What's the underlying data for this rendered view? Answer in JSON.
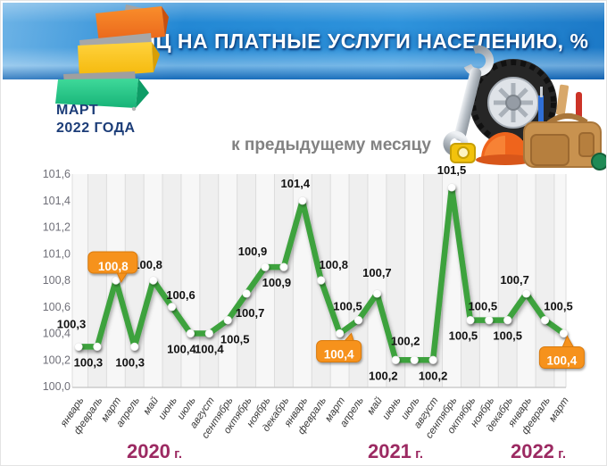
{
  "header": {
    "title": "ИПЦ НА ПЛАТНЫЕ УСЛУГИ НАСЕЛЕНИЮ, %",
    "period_line1": "МАРТ",
    "period_line2": "2022 ГОДА"
  },
  "colors": {
    "line_green": "#3da23d",
    "marker_white": "#ffffff",
    "highlight_orange": "#f6921e",
    "highlight_orange_dark": "#d87a10",
    "year_label_magenta": "#9c2a62",
    "axis_gray": "#6f6f78",
    "tick_gray": "#3a3a3a",
    "data_label_black": "#111111",
    "banner_blue": "#2388d4",
    "period_navy": "#1c3d78",
    "subtitle_gray": "#828282"
  },
  "icons": {
    "logo": "steps-logo-icon",
    "decor": [
      "wrench-icon",
      "tire-icon",
      "helmet-icon",
      "toolbag-icon",
      "tape-measure-icon"
    ]
  },
  "chart_data": {
    "type": "line",
    "title": "к предыдущему месяцу",
    "ylabel": "",
    "xlabel": "",
    "ylim": [
      100.0,
      101.6
    ],
    "y_ticks": [
      "101,6",
      "101,4",
      "101,2",
      "101,0",
      "100,8",
      "100,6",
      "100,4",
      "100,2",
      "100,0"
    ],
    "grid": "vertical-only",
    "legend_position": "none",
    "years": [
      {
        "label": "2020",
        "suffix": "г."
      },
      {
        "label": "2021",
        "suffix": "г."
      },
      {
        "label": "2022",
        "suffix": "г."
      }
    ],
    "points": [
      {
        "month": "январь",
        "year": 2020,
        "value": 100.3,
        "label": "100,3",
        "pos": "above",
        "callout": false
      },
      {
        "month": "февраль",
        "year": 2020,
        "value": 100.3,
        "label": "100,3",
        "pos": "below",
        "callout": false
      },
      {
        "month": "март",
        "year": 2020,
        "value": 100.8,
        "label": "100,8",
        "pos": "above",
        "callout": true
      },
      {
        "month": "апрель",
        "year": 2020,
        "value": 100.3,
        "label": "100,3",
        "pos": "below",
        "callout": false
      },
      {
        "month": "май",
        "year": 2020,
        "value": 100.8,
        "label": "100,8",
        "pos": "above",
        "callout": false
      },
      {
        "month": "июнь",
        "year": 2020,
        "value": 100.6,
        "label": "100,6",
        "pos": "above",
        "callout": false
      },
      {
        "month": "июль",
        "year": 2020,
        "value": 100.4,
        "label": "100,4",
        "pos": "below",
        "callout": false
      },
      {
        "month": "август",
        "year": 2020,
        "value": 100.4,
        "label": "100,4",
        "pos": "below",
        "callout": false
      },
      {
        "month": "сентябрь",
        "year": 2020,
        "value": 100.5,
        "label": "100,5",
        "pos": "below",
        "callout": false
      },
      {
        "month": "октябрь",
        "year": 2020,
        "value": 100.7,
        "label": "100,7",
        "pos": "below",
        "callout": false
      },
      {
        "month": "ноябрь",
        "year": 2020,
        "value": 100.9,
        "label": "100,9",
        "pos": "above",
        "callout": false
      },
      {
        "month": "декабрь",
        "year": 2020,
        "value": 100.9,
        "label": "100,9",
        "pos": "below",
        "callout": false
      },
      {
        "month": "январь",
        "year": 2021,
        "value": 101.4,
        "label": "101,4",
        "pos": "above",
        "callout": false
      },
      {
        "month": "февраль",
        "year": 2021,
        "value": 100.8,
        "label": "100,8",
        "pos": "above",
        "callout": false
      },
      {
        "month": "март",
        "year": 2021,
        "value": 100.4,
        "label": "100,4",
        "pos": "below",
        "callout": true
      },
      {
        "month": "апрель",
        "year": 2021,
        "value": 100.5,
        "label": "100,5",
        "pos": "above",
        "callout": false
      },
      {
        "month": "май",
        "year": 2021,
        "value": 100.7,
        "label": "100,7",
        "pos": "above",
        "callout": false
      },
      {
        "month": "июнь",
        "year": 2021,
        "value": 100.2,
        "label": "100,2",
        "pos": "below",
        "callout": false
      },
      {
        "month": "июль",
        "year": 2021,
        "value": 100.2,
        "label": "100,2",
        "pos": "above",
        "callout": false
      },
      {
        "month": "август",
        "year": 2021,
        "value": 100.2,
        "label": "100,2",
        "pos": "below",
        "callout": false
      },
      {
        "month": "сентябрь",
        "year": 2021,
        "value": 101.5,
        "label": "101,5",
        "pos": "above",
        "callout": false
      },
      {
        "month": "октябрь",
        "year": 2021,
        "value": 100.5,
        "label": "100,5",
        "pos": "below",
        "callout": false
      },
      {
        "month": "ноябрь",
        "year": 2021,
        "value": 100.5,
        "label": "100,5",
        "pos": "above",
        "callout": false
      },
      {
        "month": "декабрь",
        "year": 2021,
        "value": 100.5,
        "label": "100,5",
        "pos": "below",
        "callout": false
      },
      {
        "month": "январь",
        "year": 2022,
        "value": 100.7,
        "label": "100,7",
        "pos": "above",
        "callout": false
      },
      {
        "month": "февраль",
        "year": 2022,
        "value": 100.5,
        "label": "100,5",
        "pos": "above",
        "callout": false
      },
      {
        "month": "март",
        "year": 2022,
        "value": 100.4,
        "label": "100,4",
        "pos": "below",
        "callout": true
      }
    ]
  }
}
